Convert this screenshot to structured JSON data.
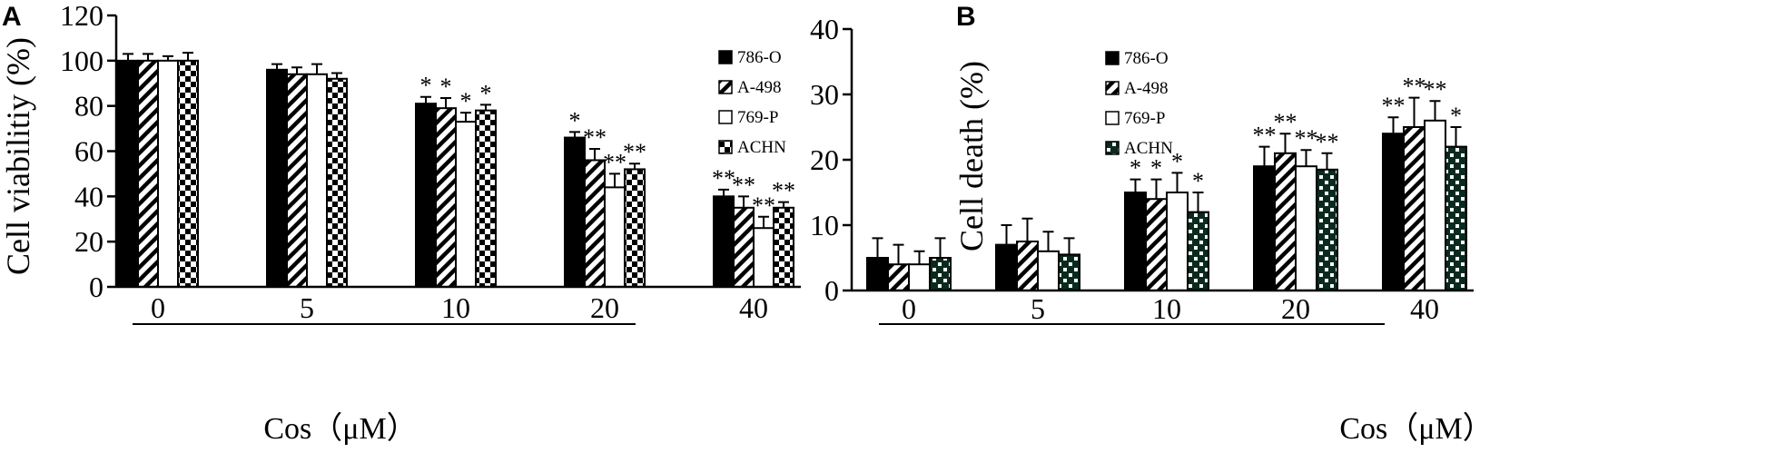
{
  "colors": {
    "ink": "#000000",
    "paper": "#ffffff"
  },
  "panels": [
    {
      "letter": "A",
      "chart_data": {
        "type": "bar",
        "categories": [
          "0",
          "5",
          "10",
          "20",
          "40"
        ],
        "ylabel": "Cell viabilitiy (%)",
        "xlabel": "Cos（μM）",
        "ylim": [
          0,
          120
        ],
        "yticks": [
          "0",
          "20",
          "40",
          "60",
          "80",
          "100",
          "120"
        ],
        "legend_position": "right",
        "series": [
          {
            "name": "786-O",
            "pattern": "solid",
            "values": [
              100,
              96,
              81,
              66,
              40
            ],
            "errors": [
              3,
              2.5,
              3,
              2.5,
              3
            ],
            "stars": [
              "",
              "",
              "*",
              "*",
              "**"
            ]
          },
          {
            "name": "A-498",
            "pattern": "hatch",
            "values": [
              100,
              94,
              79,
              56,
              35
            ],
            "errors": [
              3,
              3,
              4.5,
              5,
              5
            ],
            "stars": [
              "",
              "",
              "*",
              "**",
              "**"
            ]
          },
          {
            "name": "769-P",
            "pattern": "open",
            "values": [
              100,
              94,
              73,
              44,
              26
            ],
            "errors": [
              2,
              4.5,
              4,
              6,
              5
            ],
            "stars": [
              "",
              "",
              "*",
              "**",
              "**"
            ]
          },
          {
            "name": "ACHN",
            "pattern": "checker",
            "values": [
              100,
              92,
              78,
              52,
              35
            ],
            "errors": [
              3.5,
              2.5,
              2.5,
              2.5,
              2.5
            ],
            "stars": [
              "",
              "",
              "*",
              "**",
              "**"
            ]
          }
        ]
      }
    },
    {
      "letter": "B",
      "chart_data": {
        "type": "bar",
        "categories": [
          "0",
          "5",
          "10",
          "20",
          "40"
        ],
        "ylabel": "Cell death (%)",
        "xlabel": "Cos（μM）",
        "ylim": [
          0,
          40
        ],
        "yticks": [
          "0",
          "10",
          "20",
          "30",
          "40"
        ],
        "legend_position": "top-left",
        "series": [
          {
            "name": "786-O",
            "pattern": "solid",
            "values": [
              5,
              7,
              15,
              19,
              24
            ],
            "errors": [
              3,
              3,
              2,
              3,
              2.5
            ],
            "stars": [
              "",
              "",
              "*",
              "**",
              "**"
            ]
          },
          {
            "name": "A-498",
            "pattern": "hatch",
            "values": [
              4,
              7.5,
              14,
              21,
              25
            ],
            "errors": [
              3,
              3.5,
              3,
              3,
              4.5
            ],
            "stars": [
              "",
              "",
              "*",
              "**",
              "**"
            ]
          },
          {
            "name": "769-P",
            "pattern": "open",
            "values": [
              4,
              6,
              15,
              19,
              26
            ],
            "errors": [
              2,
              3,
              3,
              2.5,
              3
            ],
            "stars": [
              "",
              "",
              "*",
              "**",
              "**"
            ]
          },
          {
            "name": "ACHN",
            "pattern": "dotchecker",
            "values": [
              5,
              5.5,
              12,
              18.5,
              22
            ],
            "errors": [
              3,
              2.5,
              3,
              2.5,
              3
            ],
            "stars": [
              "",
              "",
              "*",
              "**",
              "*"
            ]
          }
        ]
      }
    }
  ]
}
